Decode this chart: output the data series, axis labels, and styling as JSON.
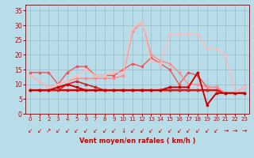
{
  "x": [
    0,
    1,
    2,
    3,
    4,
    5,
    6,
    7,
    8,
    9,
    10,
    11,
    12,
    13,
    14,
    15,
    16,
    17,
    18,
    19,
    20,
    21,
    22,
    23
  ],
  "series": [
    {
      "y": [
        8,
        8,
        8,
        8,
        8,
        8,
        8,
        8,
        8,
        8,
        8,
        8,
        8,
        8,
        8,
        8,
        8,
        8,
        8,
        8,
        8,
        7,
        7,
        7
      ],
      "color": "#dd0000",
      "lw": 1.8,
      "marker": "s",
      "ms": 2.0
    },
    {
      "y": [
        8,
        8,
        8,
        8,
        10,
        11,
        10,
        9,
        8,
        8,
        8,
        8,
        8,
        8,
        8,
        8,
        8,
        8,
        8,
        8,
        8,
        7,
        7,
        7
      ],
      "color": "#cc2222",
      "lw": 1.2,
      "marker": "s",
      "ms": 1.8
    },
    {
      "y": [
        14,
        14,
        14,
        10,
        14,
        16,
        16,
        13,
        13,
        13,
        15,
        17,
        16,
        19,
        17,
        15,
        10,
        14,
        13,
        9,
        9,
        7,
        7,
        9
      ],
      "color": "#ee5555",
      "lw": 1.0,
      "marker": "s",
      "ms": 1.8
    },
    {
      "y": [
        13,
        11,
        9,
        10,
        11,
        12,
        12,
        12,
        12,
        12,
        13,
        28,
        31,
        20,
        18,
        17,
        14,
        10,
        10,
        9,
        9,
        7,
        7,
        9
      ],
      "color": "#ff8888",
      "lw": 1.0,
      "marker": "s",
      "ms": 1.8
    },
    {
      "y": [
        13,
        11,
        9,
        10,
        11,
        13,
        15,
        13,
        13,
        14,
        14,
        29,
        31,
        18,
        17,
        27,
        27,
        27,
        27,
        22,
        22,
        20,
        7,
        9
      ],
      "color": "#ffbbbb",
      "lw": 1.0,
      "marker": "s",
      "ms": 1.8
    },
    {
      "y": [
        8,
        8,
        8,
        9,
        10,
        9,
        8,
        8,
        8,
        8,
        8,
        8,
        8,
        8,
        8,
        9,
        9,
        9,
        14,
        3,
        7,
        7,
        7,
        7
      ],
      "color": "#cc0000",
      "lw": 1.4,
      "marker": "s",
      "ms": 1.8
    }
  ],
  "xlabel": "Vent moyen/en rafales ( km/h )",
  "xlim": [
    -0.5,
    23.5
  ],
  "ylim": [
    0,
    37
  ],
  "yticks": [
    0,
    5,
    10,
    15,
    20,
    25,
    30,
    35
  ],
  "xticks": [
    0,
    1,
    2,
    3,
    4,
    5,
    6,
    7,
    8,
    9,
    10,
    11,
    12,
    13,
    14,
    15,
    16,
    17,
    18,
    19,
    20,
    21,
    22,
    23
  ],
  "bg_color": "#b8dde8",
  "grid_color": "#99bbcc",
  "label_color": "#cc0000",
  "tick_color": "#cc0000",
  "arrows": [
    "↙",
    "↙",
    "↗",
    "↙",
    "↙",
    "↙",
    "↙",
    "↙",
    "↙",
    "↙",
    "↓",
    "↙",
    "↙",
    "↙",
    "↙",
    "↙",
    "↙",
    "↙",
    "↙",
    "↙",
    "↙",
    "→",
    "→",
    "→"
  ]
}
